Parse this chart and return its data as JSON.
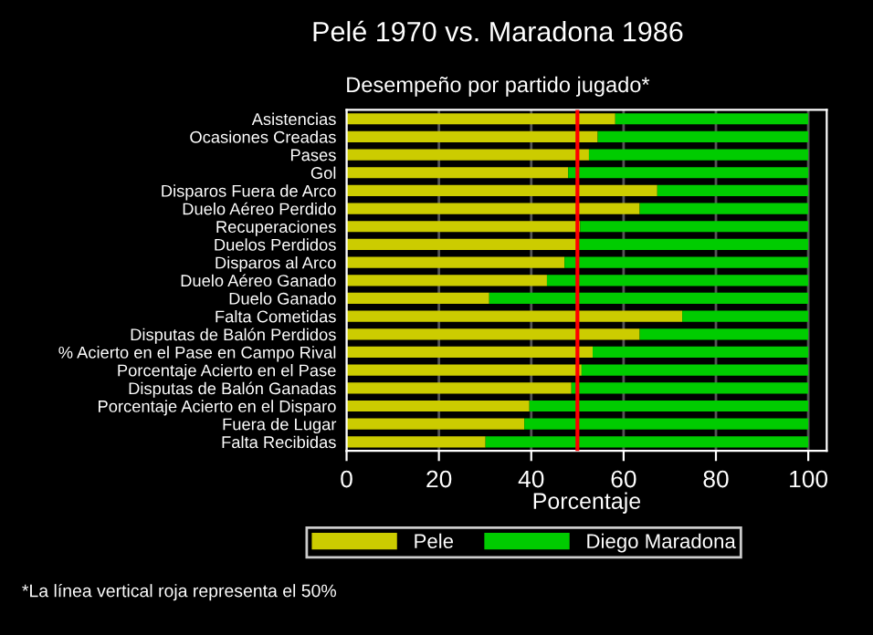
{
  "chart_data": {
    "type": "bar",
    "orientation": "horizontal",
    "stacked": true,
    "title": "Pelé 1970 vs. Maradona 1986",
    "subtitle": "Desempeño por partido jugado*",
    "xlabel": "Porcentaje",
    "categories": [
      "Asistencias",
      "Ocasiones Creadas",
      "Pases",
      "Gol",
      "Disparos Fuera de Arco",
      "Duelo Aéreo Perdido",
      "Recuperaciones",
      "Duelos Perdidos",
      "Disparos al Arco",
      "Duelo Aéreo Ganado",
      "Duelo Ganado",
      "Falta Cometidas",
      "Disputas de Balón Perdidos",
      "% Acierto en el Pase en Campo Rival",
      "Porcentaje Acierto en el Pase",
      "Disputas de Balón Ganadas",
      "Porcentaje Acierto en el Disparo",
      "Fuera de Lugar",
      "Falta Recibidas"
    ],
    "series": [
      {
        "name": "Pele",
        "color": "#cccc00",
        "values": [
          58.2,
          54.4,
          52.5,
          48.0,
          67.3,
          63.5,
          50.6,
          49.9,
          47.2,
          43.4,
          30.9,
          72.7,
          63.5,
          53.3,
          50.9,
          48.7,
          39.6,
          38.5,
          30.1
        ]
      },
      {
        "name": "Diego Maradona",
        "color": "#00cc00",
        "values": [
          41.8,
          45.6,
          47.5,
          52.0,
          32.7,
          36.5,
          49.4,
          50.1,
          52.8,
          56.6,
          69.1,
          27.3,
          36.5,
          46.7,
          49.1,
          51.3,
          60.4,
          61.5,
          69.9
        ]
      }
    ],
    "xlim": [
      0,
      104
    ],
    "xticks": [
      0,
      20,
      40,
      60,
      80,
      100
    ],
    "grid": "x",
    "legend": "bottom",
    "ref_lines": [
      {
        "axis": "x",
        "value": 50,
        "color": "#ff0000"
      }
    ],
    "annotations": [
      "*La línea vertical roja representa el 50%"
    ]
  }
}
